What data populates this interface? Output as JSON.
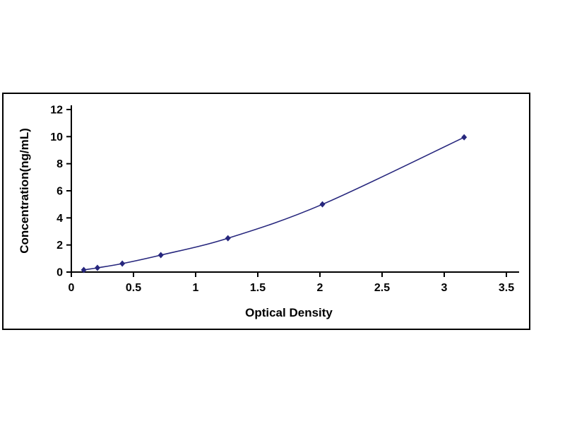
{
  "figure": {
    "background_color": "#ffffff",
    "border_color": "#000000"
  },
  "chart_data": {
    "type": "line",
    "title": "",
    "xlabel": "Optical Density",
    "ylabel": "Concentration(ng/mL)",
    "x": [
      0.1,
      0.21,
      0.41,
      0.72,
      1.26,
      2.02,
      3.16
    ],
    "y": [
      0.156,
      0.312,
      0.625,
      1.25,
      2.5,
      5.0,
      9.95
    ],
    "xlim": [
      0,
      3.5
    ],
    "ylim": [
      0,
      12
    ],
    "x_ticks": [
      0,
      0.5,
      1,
      1.5,
      2,
      2.5,
      3,
      3.5
    ],
    "x_tick_labels": [
      "0",
      "0.5",
      "1",
      "1.5",
      "2",
      "2.5",
      "3",
      "3.5"
    ],
    "y_ticks": [
      0,
      2,
      4,
      6,
      8,
      10,
      12
    ],
    "y_tick_labels": [
      "0",
      "2",
      "4",
      "6",
      "8",
      "10",
      "12"
    ],
    "line_color": "#26267d",
    "marker": "diamond",
    "marker_color": "#26267d",
    "axis_color": "#000000",
    "grid": false,
    "legend": false
  }
}
